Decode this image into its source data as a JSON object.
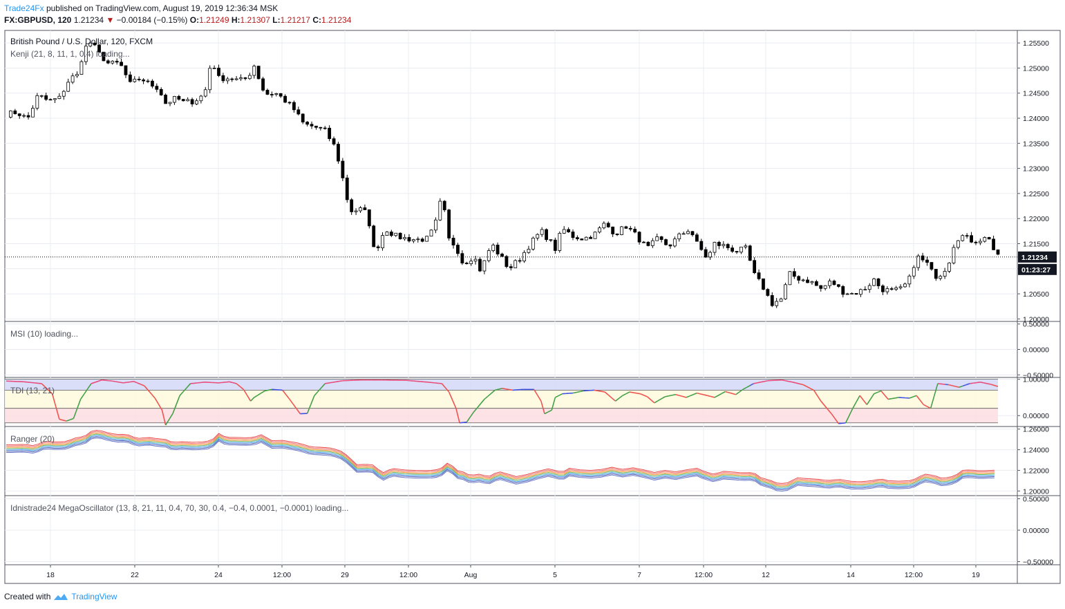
{
  "header": {
    "publisher": "Trade24Fx",
    "published_text": "published on TradingView.com, August 19, 2019 12:36:34 MSK",
    "symbol": "FX:GBPUSD, 120",
    "last": "1.21234",
    "change": "−0.00184 (−0.15%)",
    "o_label": "O:",
    "o_value": "1.21249",
    "h_label": "H:",
    "h_value": "1.21307",
    "l_label": "L:",
    "l_value": "1.21217",
    "c_label": "C:",
    "c_value": "1.21234"
  },
  "footer": {
    "created_with": "Created with",
    "brand": "TradingView"
  },
  "colors": {
    "grid": "#e9ecf1",
    "border": "#50535e",
    "accent": "#2196f3",
    "down": "#b71c1c",
    "tdi_top": "#d6daf7",
    "tdi_mid": "#fffbe0",
    "tdi_bot": "#fde0e3"
  },
  "chart_data": [
    {
      "type": "candlestick",
      "title": "British Pound / U.S. Dollar, 120, FXCM",
      "indicator_label": "Kenji (21, 8, 11, 1, 0.4) loading...",
      "ylim": [
        1.1995,
        1.2575
      ],
      "yticks": [
        "1.25500",
        "1.25000",
        "1.24500",
        "1.24000",
        "1.23500",
        "1.23000",
        "1.22500",
        "1.22000",
        "1.21500",
        "1.21000",
        "1.20500",
        "1.20000"
      ],
      "xticks": [
        "18",
        "22",
        "24",
        "12:00",
        "29",
        "12:00",
        "Aug",
        "5",
        "7",
        "12:00",
        "12",
        "14",
        "12:00",
        "19"
      ],
      "price_line": 1.21234,
      "last_price_label": "1.21234",
      "countdown_label": "01:23:27",
      "close_path": [
        [
          0,
          1.2408
        ],
        [
          6,
          1.2412
        ],
        [
          12,
          1.2398
        ],
        [
          18,
          1.2446
        ],
        [
          24,
          1.2434
        ],
        [
          30,
          1.244
        ],
        [
          36,
          1.248
        ],
        [
          40,
          1.2485
        ],
        [
          44,
          1.2538
        ],
        [
          48,
          1.2552
        ],
        [
          52,
          1.253
        ],
        [
          58,
          1.2508
        ],
        [
          64,
          1.251
        ],
        [
          70,
          1.2468
        ],
        [
          76,
          1.248
        ],
        [
          80,
          1.247
        ],
        [
          86,
          1.246
        ],
        [
          90,
          1.243
        ],
        [
          96,
          1.244
        ],
        [
          100,
          1.2432
        ],
        [
          106,
          1.2434
        ],
        [
          112,
          1.2448
        ],
        [
          116,
          1.2518
        ],
        [
          120,
          1.248
        ],
        [
          126,
          1.248
        ],
        [
          132,
          1.2475
        ],
        [
          136,
          1.248
        ],
        [
          140,
          1.2505
        ],
        [
          146,
          1.2448
        ],
        [
          152,
          1.245
        ],
        [
          156,
          1.244
        ],
        [
          162,
          1.242
        ],
        [
          168,
          1.2388
        ],
        [
          174,
          1.2383
        ],
        [
          180,
          1.2375
        ],
        [
          186,
          1.234
        ],
        [
          190,
          1.228
        ],
        [
          194,
          1.2215
        ],
        [
          200,
          1.2218
        ],
        [
          204,
          1.221
        ],
        [
          208,
          1.213
        ],
        [
          214,
          1.218
        ],
        [
          220,
          1.2165
        ],
        [
          226,
          1.216
        ],
        [
          232,
          1.2158
        ],
        [
          238,
          1.216
        ],
        [
          242,
          1.2185
        ],
        [
          246,
          1.2245
        ],
        [
          250,
          1.2158
        ],
        [
          254,
          1.2145
        ],
        [
          258,
          1.211
        ],
        [
          264,
          1.2125
        ],
        [
          268,
          1.2095
        ],
        [
          274,
          1.215
        ],
        [
          280,
          1.212
        ],
        [
          284,
          1.21
        ],
        [
          290,
          1.212
        ],
        [
          296,
          1.215
        ],
        [
          302,
          1.2175
        ],
        [
          306,
          1.216
        ],
        [
          310,
          1.214
        ],
        [
          314,
          1.218
        ],
        [
          320,
          1.2165
        ],
        [
          326,
          1.216
        ],
        [
          332,
          1.2168
        ],
        [
          338,
          1.219
        ],
        [
          344,
          1.217
        ],
        [
          350,
          1.2185
        ],
        [
          356,
          1.2165
        ],
        [
          362,
          1.214
        ],
        [
          368,
          1.216
        ],
        [
          374,
          1.2145
        ],
        [
          380,
          1.2165
        ],
        [
          386,
          1.218
        ],
        [
          390,
          1.215
        ],
        [
          396,
          1.212
        ],
        [
          400,
          1.215
        ],
        [
          406,
          1.2145
        ],
        [
          412,
          1.2135
        ],
        [
          418,
          1.214
        ],
        [
          422,
          1.209
        ],
        [
          428,
          1.206
        ],
        [
          432,
          1.203
        ],
        [
          438,
          1.204
        ],
        [
          442,
          1.209
        ],
        [
          448,
          1.208
        ],
        [
          454,
          1.2075
        ],
        [
          460,
          1.206
        ],
        [
          466,
          1.2075
        ],
        [
          472,
          1.2055
        ],
        [
          478,
          1.205
        ],
        [
          484,
          1.2058
        ],
        [
          490,
          1.2078
        ],
        [
          494,
          1.206
        ],
        [
          500,
          1.2055
        ],
        [
          506,
          1.206
        ],
        [
          510,
          1.208
        ],
        [
          514,
          1.2125
        ],
        [
          520,
          1.211
        ],
        [
          524,
          1.2085
        ],
        [
          528,
          1.209
        ],
        [
          532,
          1.211
        ],
        [
          536,
          1.216
        ],
        [
          540,
          1.2165
        ],
        [
          546,
          1.2155
        ],
        [
          552,
          1.216
        ],
        [
          556,
          1.2163
        ],
        [
          558,
          1.213
        ],
        [
          560,
          1.2123
        ]
      ]
    },
    {
      "type": "line",
      "title": "MSI (10) loading...",
      "ylim": [
        -0.55,
        0.55
      ],
      "yticks": [
        "0.50000",
        "0.00000",
        "−0.50000"
      ]
    },
    {
      "type": "line",
      "title": "TDI (13, 21)",
      "ylim": [
        -0.3,
        1.05
      ],
      "yticks": [
        "1.00000",
        "0.00000"
      ],
      "bands": [
        [
          0.7,
          1.0
        ],
        [
          0.2,
          0.7
        ],
        [
          -0.2,
          0.2
        ]
      ],
      "series": [
        {
          "values": [
            [
              0,
              0.95
            ],
            [
              10,
              0.93
            ],
            [
              20,
              0.88
            ],
            [
              26,
              0.6
            ],
            [
              30,
              -0.1
            ],
            [
              34,
              -0.15
            ],
            [
              38,
              -0.08
            ],
            [
              42,
              0.45
            ],
            [
              48,
              0.88
            ],
            [
              54,
              0.98
            ],
            [
              60,
              0.95
            ],
            [
              66,
              0.9
            ],
            [
              72,
              0.94
            ],
            [
              78,
              0.82
            ],
            [
              84,
              0.48
            ],
            [
              88,
              0.15
            ],
            [
              90,
              -0.26
            ],
            [
              94,
              0.05
            ],
            [
              98,
              0.55
            ],
            [
              104,
              0.88
            ],
            [
              112,
              0.92
            ],
            [
              120,
              0.9
            ],
            [
              126,
              0.93
            ],
            [
              130,
              0.88
            ],
            [
              134,
              0.72
            ],
            [
              138,
              0.4
            ],
            [
              140,
              0.5
            ],
            [
              146,
              0.68
            ],
            [
              150,
              0.72
            ],
            [
              156,
              0.7
            ],
            [
              160,
              0.45
            ],
            [
              166,
              0.05
            ],
            [
              170,
              0.06
            ],
            [
              174,
              0.55
            ],
            [
              180,
              0.88
            ],
            [
              190,
              0.96
            ],
            [
              200,
              0.98
            ],
            [
              212,
              0.98
            ],
            [
              226,
              0.97
            ],
            [
              238,
              0.92
            ],
            [
              246,
              0.88
            ],
            [
              250,
              0.65
            ],
            [
              254,
              0.2
            ],
            [
              256,
              -0.2
            ],
            [
              260,
              -0.18
            ],
            [
              264,
              0.1
            ],
            [
              270,
              0.45
            ],
            [
              276,
              0.7
            ],
            [
              280,
              0.75
            ],
            [
              286,
              0.7
            ],
            [
              292,
              0.72
            ],
            [
              298,
              0.72
            ],
            [
              302,
              0.4
            ],
            [
              304,
              0.05
            ],
            [
              308,
              0.15
            ],
            [
              310,
              0.5
            ],
            [
              314,
              0.6
            ],
            [
              320,
              0.62
            ],
            [
              326,
              0.68
            ],
            [
              332,
              0.7
            ],
            [
              338,
              0.65
            ],
            [
              344,
              0.4
            ],
            [
              348,
              0.55
            ],
            [
              352,
              0.65
            ],
            [
              358,
              0.6
            ],
            [
              362,
              0.52
            ],
            [
              366,
              0.35
            ],
            [
              372,
              0.52
            ],
            [
              378,
              0.58
            ],
            [
              384,
              0.5
            ],
            [
              390,
              0.62
            ],
            [
              396,
              0.55
            ],
            [
              400,
              0.5
            ],
            [
              406,
              0.66
            ],
            [
              412,
              0.58
            ],
            [
              416,
              0.72
            ],
            [
              422,
              0.88
            ],
            [
              430,
              0.96
            ],
            [
              438,
              0.98
            ],
            [
              444,
              0.92
            ],
            [
              450,
              0.85
            ],
            [
              456,
              0.7
            ],
            [
              460,
              0.4
            ],
            [
              466,
              0.05
            ],
            [
              470,
              -0.22
            ],
            [
              474,
              -0.2
            ],
            [
              478,
              0.2
            ],
            [
              482,
              0.55
            ],
            [
              486,
              0.3
            ],
            [
              490,
              0.6
            ],
            [
              494,
              0.68
            ],
            [
              498,
              0.45
            ],
            [
              504,
              0.5
            ],
            [
              510,
              0.48
            ],
            [
              514,
              0.55
            ],
            [
              518,
              0.3
            ],
            [
              522,
              0.2
            ],
            [
              526,
              0.88
            ],
            [
              532,
              0.85
            ],
            [
              538,
              0.78
            ],
            [
              544,
              0.88
            ],
            [
              550,
              0.92
            ],
            [
              556,
              0.86
            ],
            [
              560,
              0.8
            ]
          ]
        }
      ]
    },
    {
      "type": "line",
      "title": "Ranger (20)",
      "ylim": [
        1.1955,
        1.2625
      ],
      "yticks": [
        "1.26000",
        "1.24000",
        "1.22000",
        "1.20000"
      ]
    },
    {
      "type": "line",
      "title": "Idnistrade24 MegaOscillator (13, 8, 21, 11, 0.4, 70, 30, 0.4, −0.4, 0.0001, −0.0001) loading...",
      "ylim": [
        -0.55,
        0.55
      ],
      "yticks": [
        "0.50000",
        "0.00000",
        "−0.50000"
      ]
    }
  ]
}
